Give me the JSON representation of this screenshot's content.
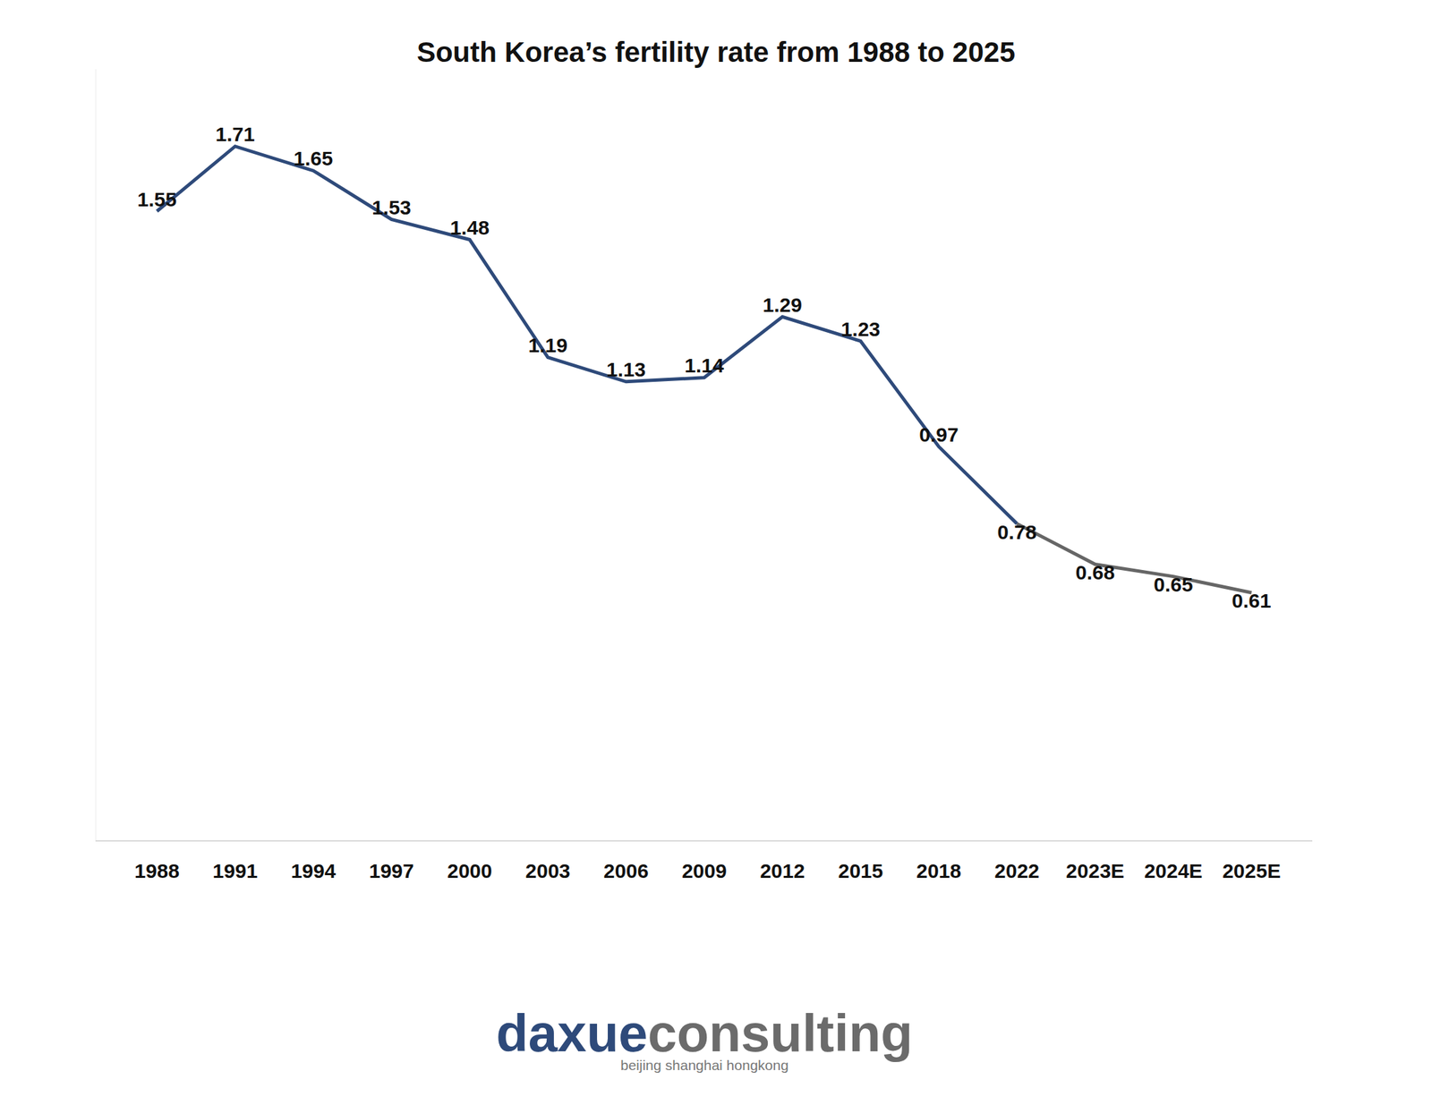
{
  "chart_data": {
    "type": "line",
    "title": "South Korea’s fertility rate from 1988 to 2025",
    "categories": [
      "1988",
      "1991",
      "1994",
      "1997",
      "2000",
      "2003",
      "2006",
      "2009",
      "2012",
      "2015",
      "2018",
      "2022",
      "2023E",
      "2024E",
      "2025E"
    ],
    "series": [
      {
        "color": "#2e4a7a",
        "values": [
          1.55,
          1.71,
          1.65,
          1.53,
          1.48,
          1.19,
          1.13,
          1.14,
          1.29,
          1.23,
          0.97,
          0.78,
          null,
          null,
          null
        ]
      },
      {
        "color": "#666666",
        "values": [
          null,
          null,
          null,
          null,
          null,
          null,
          null,
          null,
          null,
          null,
          null,
          0.78,
          0.68,
          0.65,
          0.61
        ]
      }
    ],
    "ylim": [
      0,
      1.9
    ],
    "yticks": [
      0
    ],
    "grid": false,
    "data_labels": true,
    "tick_labels": "x",
    "annotations": [
      "daxue",
      "consulting",
      "beijing shanghai hongkong"
    ]
  }
}
